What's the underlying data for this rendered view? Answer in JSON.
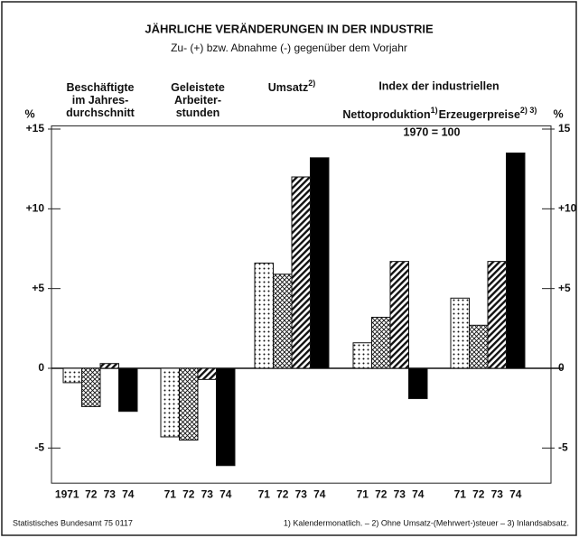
{
  "chart_data": {
    "type": "bar",
    "title": "JÄHRLICHE VERÄNDERUNGEN IN DER INDUSTRIE",
    "subtitle": "Zu- (+) bzw. Abnahme (-) gegenüber dem Vorjahr",
    "ylabel": "%",
    "y2label": "%",
    "ylim": [
      -7.2,
      15.2
    ],
    "yticks": [
      {
        "value": 15,
        "label": "+15"
      },
      {
        "value": 10,
        "label": "+10"
      },
      {
        "value": 5,
        "label": "+5"
      },
      0,
      -5
    ],
    "y2ticks": [
      15,
      {
        "value": 10,
        "label": "+10"
      },
      {
        "value": 5,
        "label": "+5"
      },
      0,
      -5
    ],
    "super_header": "Index der industriellen",
    "base_note": "1970 = 100",
    "groups": [
      {
        "header": [
          "Beschäftigte",
          "im Jahres-",
          "durchschnitt"
        ],
        "categories": [
          "1971",
          "72",
          "73",
          "74"
        ],
        "values": [
          -0.9,
          -2.4,
          0.3,
          -2.7
        ]
      },
      {
        "header": [
          "Geleistete",
          "Arbeiter-",
          "stunden"
        ],
        "categories": [
          "71",
          "72",
          "73",
          "74"
        ],
        "values": [
          -4.3,
          -4.5,
          -0.7,
          -6.1
        ]
      },
      {
        "header": [
          "Umsatz"
        ],
        "note": "2)",
        "categories": [
          "71",
          "72",
          "73",
          "74"
        ],
        "values": [
          6.6,
          5.9,
          12.0,
          13.2
        ]
      },
      {
        "header": [
          "Nettoproduktion"
        ],
        "note": "1)",
        "categories": [
          "71",
          "72",
          "73",
          "74"
        ],
        "values": [
          1.6,
          3.2,
          6.7,
          -1.9
        ]
      },
      {
        "header": [
          "Erzeugerpreise"
        ],
        "note": "2) 3)",
        "categories": [
          "71",
          "72",
          "73",
          "74"
        ],
        "values": [
          4.4,
          2.7,
          6.7,
          13.5
        ]
      }
    ],
    "source": "Statistisches Bundesamt 75 0117",
    "footnote": "1) Kalendermonatlich. – 2) Ohne Umsatz-(Mehrwert-)steuer – 3) Inlandsabsatz."
  }
}
